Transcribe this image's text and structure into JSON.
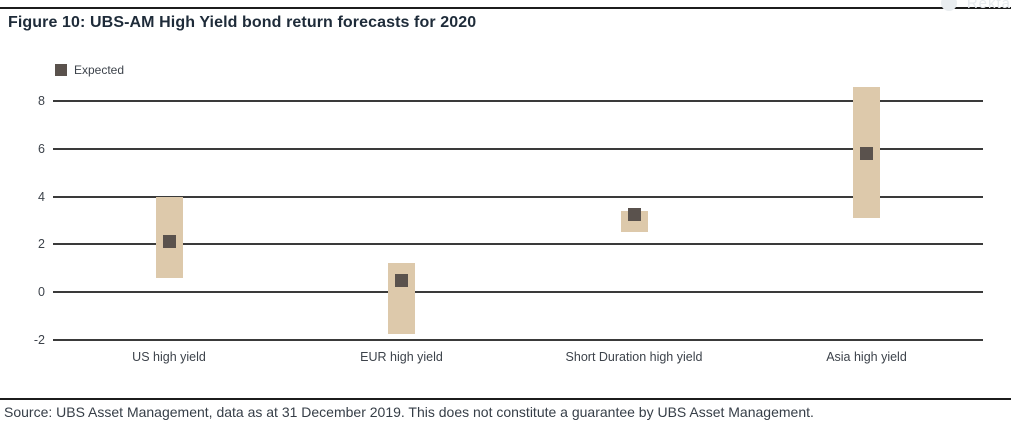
{
  "page": {
    "title": "Figure 10: UBS-AM High Yield bond return forecasts for 2020",
    "source_note": "Source: UBS Asset Management, data as at 31 December 2019. This does not constitute a guarantee by UBS Asset Management.",
    "watermark_text": "Rekta"
  },
  "legend": {
    "label": "Expected",
    "position": "top-left"
  },
  "colors": {
    "bar_range": "#ddc9ab",
    "expected_marker": "#5a524d",
    "gridline": "#3a3a3a",
    "text": "#3d434b",
    "rule": "#1c1c1c"
  },
  "chart_data": {
    "type": "bar",
    "subtype": "floating-range-bar-with-point",
    "title": "Figure 10: UBS-AM High Yield bond return forecasts for 2020",
    "categories": [
      "US high yield",
      "EUR high yield",
      "Short Duration high yield",
      "Asia high yield"
    ],
    "series": [
      {
        "name": "Range low",
        "values": [
          0.6,
          -1.75,
          2.5,
          3.1
        ]
      },
      {
        "name": "Range high",
        "values": [
          4.0,
          1.2,
          3.4,
          8.6
        ]
      },
      {
        "name": "Expected",
        "values": [
          2.1,
          0.5,
          3.25,
          5.8
        ]
      }
    ],
    "xlabel": "",
    "ylabel": "",
    "yticks": [
      -2,
      0,
      2,
      4,
      6,
      8
    ],
    "ylim": [
      -2.3,
      8.7
    ],
    "grid": "horizontal",
    "legend_entries": [
      "Expected"
    ],
    "legend_position": "top-left"
  }
}
